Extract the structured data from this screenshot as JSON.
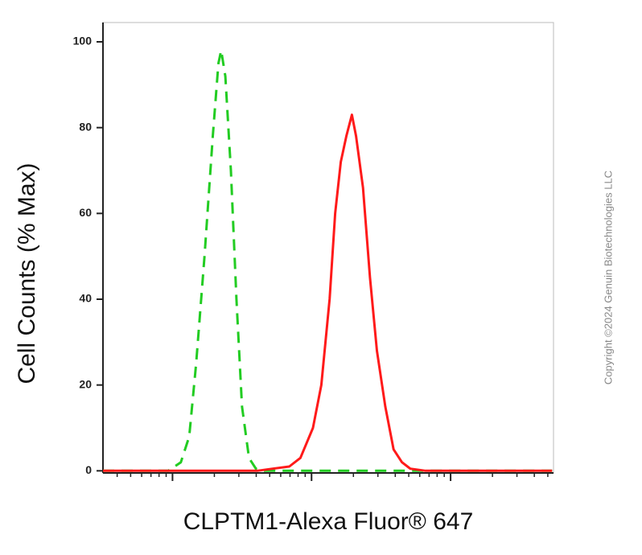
{
  "chart_data": {
    "type": "line",
    "y_label": "Cell Counts (% Max)",
    "x_label": "CLPTM1-Alexa Fluor® 647",
    "copyright": "Copyright ©2024 Genuin Biotechnologies LLC",
    "xlim": [
      -0.5,
      2.74
    ],
    "ylim": [
      -0.5,
      104.5
    ],
    "yticks": [
      0,
      20,
      40,
      60,
      80,
      100
    ],
    "series": [
      {
        "color": "#22cc22",
        "dashed": true,
        "x": [
          -0.5,
          -0.03,
          0.06,
          0.12,
          0.17,
          0.23,
          0.29,
          0.33,
          0.35,
          0.38,
          0.42,
          0.46,
          0.5,
          0.55,
          0.6,
          0.66,
          2.73
        ],
        "values": [
          0,
          0,
          2,
          8,
          25,
          50,
          78,
          95,
          98,
          92,
          70,
          40,
          15,
          3,
          0.5,
          0,
          0
        ]
      },
      {
        "color": "#ff1a1a",
        "dashed": false,
        "x": [
          -0.5,
          0.61,
          0.72,
          0.84,
          0.92,
          1.01,
          1.07,
          1.13,
          1.17,
          1.21,
          1.25,
          1.29,
          1.32,
          1.37,
          1.42,
          1.47,
          1.53,
          1.59,
          1.65,
          1.71,
          1.82,
          2.73
        ],
        "values": [
          0,
          0,
          0.5,
          1,
          3,
          10,
          20,
          40,
          60,
          72,
          78,
          83,
          78,
          66,
          45,
          28,
          15,
          5,
          2,
          0.5,
          0,
          0
        ]
      }
    ]
  }
}
